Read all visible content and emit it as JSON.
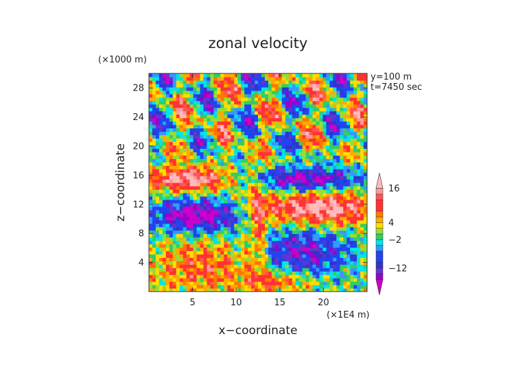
{
  "chart_data": {
    "type": "heatmap",
    "title": "zonal velocity",
    "xlabel": "x−coordinate",
    "ylabel": "z−coordinate",
    "x_unit": "(×1E4 m)",
    "y_unit": "(×1000 m)",
    "annotations": [
      "y=100 m",
      "t=7450 sec"
    ],
    "xlim": [
      0,
      25
    ],
    "ylim": [
      0,
      30
    ],
    "x_ticks": [
      5,
      10,
      15,
      20
    ],
    "y_ticks": [
      4,
      8,
      12,
      16,
      20,
      24,
      28
    ],
    "colorbar": {
      "tick_values": [
        16,
        4,
        -2,
        -12
      ],
      "tick_labels": [
        "16",
        "4",
        "−2",
        "−12"
      ],
      "range": [
        -20,
        20
      ],
      "colors": [
        "#cc00cc",
        "#9900cc",
        "#6633cc",
        "#3333cc",
        "#2244ee",
        "#3399ff",
        "#00e5e5",
        "#33cc66",
        "#99dd33",
        "#ffdd00",
        "#ffaa00",
        "#ff7700",
        "#ff3333",
        "#ff5555",
        "#ff9999",
        "#ffbbbb"
      ],
      "bounds": [
        -20,
        -16,
        -14,
        -12,
        -10,
        -6,
        -4,
        -2,
        0,
        2,
        4,
        6,
        8,
        12,
        14,
        16,
        20
      ]
    },
    "grid": false,
    "legend": "colorbar-right"
  }
}
